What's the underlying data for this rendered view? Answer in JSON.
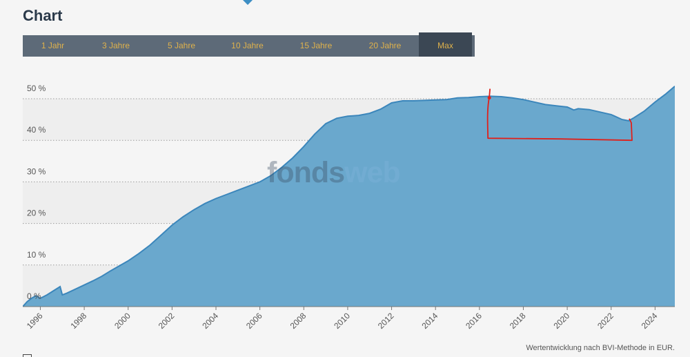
{
  "page": {
    "title": "Chart",
    "footnote": "Wertentwicklung nach BVI-Methode in EUR.",
    "watermark_part1": "fonds",
    "watermark_part2": "web"
  },
  "tabs": [
    {
      "label": "1 Jahr",
      "active": false
    },
    {
      "label": "3 Jahre",
      "active": false
    },
    {
      "label": "5 Jahre",
      "active": false
    },
    {
      "label": "10 Jahre",
      "active": false
    },
    {
      "label": "15 Jahre",
      "active": false
    },
    {
      "label": "20 Jahre",
      "active": false
    },
    {
      "label": "Max",
      "active": true
    }
  ],
  "colors": {
    "area_fill": "#6aa8cd",
    "line": "#3b86bb",
    "annotation": "#e0201a",
    "tab_label": "#e0b24b",
    "tab_bg": "#5d6a78",
    "tab_active_bg": "#3b4754"
  },
  "chart_data": {
    "type": "area",
    "ylim": [
      0,
      53
    ],
    "xlim": [
      1995.2,
      2024.9
    ],
    "yticks": [
      {
        "value": 0,
        "label": "0 %"
      },
      {
        "value": 10,
        "label": "10 %"
      },
      {
        "value": 20,
        "label": "20 %"
      },
      {
        "value": 30,
        "label": "30 %"
      },
      {
        "value": 40,
        "label": "40 %"
      },
      {
        "value": 50,
        "label": "50 %"
      }
    ],
    "xticks": [
      {
        "value": 1996,
        "label": "1996"
      },
      {
        "value": 1998,
        "label": "1998"
      },
      {
        "value": 2000,
        "label": "2000"
      },
      {
        "value": 2002,
        "label": "2002"
      },
      {
        "value": 2004,
        "label": "2004"
      },
      {
        "value": 2006,
        "label": "2006"
      },
      {
        "value": 2008,
        "label": "2008"
      },
      {
        "value": 2010,
        "label": "2010"
      },
      {
        "value": 2012,
        "label": "2012"
      },
      {
        "value": 2014,
        "label": "2014"
      },
      {
        "value": 2016,
        "label": "2016"
      },
      {
        "value": 2018,
        "label": "2018"
      },
      {
        "value": 2020,
        "label": "2020"
      },
      {
        "value": 2022,
        "label": "2022"
      },
      {
        "value": 2024,
        "label": "2024"
      }
    ],
    "grid": true,
    "x": [
      1995.2,
      1995.4,
      1995.6,
      1995.8,
      1996.0,
      1996.3,
      1996.6,
      1996.9,
      1997.0,
      1997.2,
      1997.6,
      1998.0,
      1998.4,
      1998.8,
      1999.2,
      1999.6,
      2000.0,
      2000.5,
      2001.0,
      2001.5,
      2002.0,
      2002.5,
      2003.0,
      2003.5,
      2004.0,
      2004.5,
      2005.0,
      2005.5,
      2006.0,
      2006.5,
      2007.0,
      2007.5,
      2008.0,
      2008.5,
      2009.0,
      2009.5,
      2010.0,
      2010.5,
      2011.0,
      2011.5,
      2012.0,
      2012.5,
      2013.0,
      2013.5,
      2014.0,
      2014.5,
      2015.0,
      2015.5,
      2016.0,
      2016.5,
      2017.0,
      2017.5,
      2018.0,
      2018.5,
      2019.0,
      2019.5,
      2020.0,
      2020.3,
      2020.5,
      2021.0,
      2021.5,
      2022.0,
      2022.5,
      2022.8,
      2023.0,
      2023.5,
      2024.0,
      2024.5,
      2024.9
    ],
    "values": [
      0.0,
      1.2,
      2.0,
      2.6,
      2.0,
      2.8,
      3.8,
      4.8,
      2.8,
      3.2,
      4.2,
      5.2,
      6.2,
      7.3,
      8.6,
      9.8,
      11.0,
      12.8,
      14.8,
      17.2,
      19.6,
      21.6,
      23.3,
      24.8,
      26.0,
      27.0,
      28.0,
      29.0,
      30.0,
      31.5,
      33.5,
      35.8,
      38.5,
      41.5,
      44.0,
      45.3,
      45.8,
      46.0,
      46.5,
      47.5,
      49.0,
      49.5,
      49.5,
      49.6,
      49.7,
      49.8,
      50.2,
      50.3,
      50.5,
      50.6,
      50.5,
      50.2,
      49.8,
      49.2,
      48.6,
      48.3,
      48.0,
      47.3,
      47.6,
      47.4,
      46.8,
      46.2,
      45.0,
      44.7,
      45.3,
      47.0,
      49.2,
      51.2,
      53.0
    ],
    "annotations": [
      {
        "type": "bracket",
        "from_x": 2016.45,
        "to_x": 2022.95,
        "top_y_from": 50.4,
        "top_y_to": 45.2,
        "bottom_y": 40.5
      }
    ]
  }
}
